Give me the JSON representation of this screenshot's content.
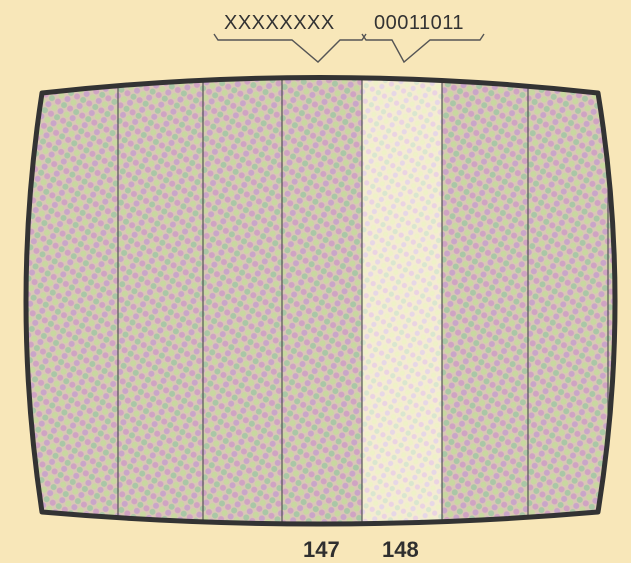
{
  "top_labels": {
    "left_byte": "XXXXXXXX",
    "right_byte": "00011011"
  },
  "bottom_labels": {
    "left_column": "147",
    "right_column": "148"
  },
  "colors": {
    "background": "#f8e7b9",
    "screen_frame": "#3a3a3a",
    "column_line": "#555555",
    "highlight_column": "#f6f0d8"
  }
}
